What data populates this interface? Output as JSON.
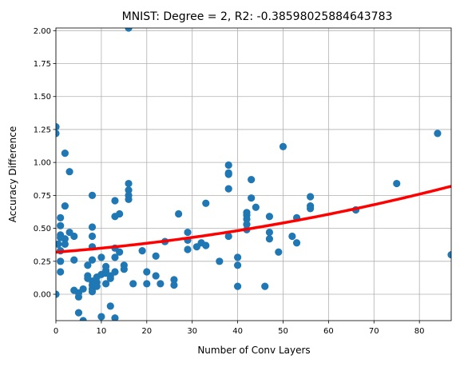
{
  "chart_data": {
    "type": "scatter",
    "title": "MNIST: Degree = 2, R2: -0.38598025884643783",
    "xlabel": "Number of Conv Layers",
    "ylabel": "Accuracy Difference",
    "xlim": [
      0,
      87
    ],
    "ylim": [
      -0.2,
      2.02
    ],
    "x_ticks": [
      0,
      10,
      20,
      30,
      40,
      50,
      60,
      70,
      80
    ],
    "y_ticks": [
      0.0,
      0.25,
      0.5,
      0.75,
      1.0,
      1.25,
      1.5,
      1.75,
      2.0
    ],
    "x_tick_labels": [
      "0",
      "10",
      "20",
      "30",
      "40",
      "50",
      "60",
      "70",
      "80"
    ],
    "y_tick_labels": [
      "0.00",
      "0.25",
      "0.50",
      "0.75",
      "1.00",
      "1.25",
      "1.50",
      "1.75",
      "2.00"
    ],
    "grid": true,
    "colors": {
      "points": "#1f77b4",
      "fit": "#ff0000",
      "grid": "#b0b0b0"
    },
    "points": [
      {
        "x": 0,
        "y": 1.27
      },
      {
        "x": 0,
        "y": 1.22
      },
      {
        "x": 0,
        "y": 0.0
      },
      {
        "x": 0.5,
        "y": 0.38
      },
      {
        "x": 1,
        "y": 0.58
      },
      {
        "x": 1,
        "y": 0.52
      },
      {
        "x": 1,
        "y": 0.45
      },
      {
        "x": 1,
        "y": 0.43
      },
      {
        "x": 1,
        "y": 0.33
      },
      {
        "x": 1,
        "y": 0.25
      },
      {
        "x": 1,
        "y": 0.17
      },
      {
        "x": 2,
        "y": 1.07
      },
      {
        "x": 2,
        "y": 0.67
      },
      {
        "x": 2,
        "y": 0.42
      },
      {
        "x": 2,
        "y": 0.38
      },
      {
        "x": 3,
        "y": 0.93
      },
      {
        "x": 3,
        "y": 0.47
      },
      {
        "x": 4,
        "y": 0.44
      },
      {
        "x": 4,
        "y": 0.26
      },
      {
        "x": 4,
        "y": 0.03
      },
      {
        "x": 5,
        "y": 0.01
      },
      {
        "x": 5,
        "y": -0.02
      },
      {
        "x": 5,
        "y": -0.14
      },
      {
        "x": 6,
        "y": 0.04
      },
      {
        "x": 6,
        "y": -0.2
      },
      {
        "x": 7,
        "y": 0.22
      },
      {
        "x": 7,
        "y": 0.14
      },
      {
        "x": 7,
        "y": 0.12
      },
      {
        "x": 8,
        "y": 0.75
      },
      {
        "x": 8,
        "y": 0.51
      },
      {
        "x": 8,
        "y": 0.44
      },
      {
        "x": 8,
        "y": 0.36
      },
      {
        "x": 8,
        "y": 0.26
      },
      {
        "x": 8,
        "y": 0.1
      },
      {
        "x": 8,
        "y": 0.07
      },
      {
        "x": 8,
        "y": 0.04
      },
      {
        "x": 8,
        "y": 0.02
      },
      {
        "x": 9,
        "y": 0.13
      },
      {
        "x": 9,
        "y": 0.09
      },
      {
        "x": 9,
        "y": 0.06
      },
      {
        "x": 10,
        "y": 0.28
      },
      {
        "x": 10,
        "y": 0.15
      },
      {
        "x": 10,
        "y": -0.17
      },
      {
        "x": 11,
        "y": 0.21
      },
      {
        "x": 11,
        "y": 0.18
      },
      {
        "x": 11,
        "y": 0.16
      },
      {
        "x": 11,
        "y": 0.08
      },
      {
        "x": 12,
        "y": 0.14
      },
      {
        "x": 12,
        "y": 0.12
      },
      {
        "x": 12,
        "y": -0.09
      },
      {
        "x": 13,
        "y": 0.71
      },
      {
        "x": 13,
        "y": 0.59
      },
      {
        "x": 13,
        "y": 0.35
      },
      {
        "x": 13,
        "y": 0.28
      },
      {
        "x": 13,
        "y": 0.17
      },
      {
        "x": 13,
        "y": -0.18
      },
      {
        "x": 14,
        "y": 0.61
      },
      {
        "x": 14,
        "y": 0.32
      },
      {
        "x": 15,
        "y": 0.22
      },
      {
        "x": 15,
        "y": 0.19
      },
      {
        "x": 16,
        "y": 0.84
      },
      {
        "x": 16,
        "y": 0.79
      },
      {
        "x": 16,
        "y": 0.75
      },
      {
        "x": 16,
        "y": 0.72
      },
      {
        "x": 16,
        "y": 2.02
      },
      {
        "x": 17,
        "y": 0.08
      },
      {
        "x": 19,
        "y": 0.33
      },
      {
        "x": 20,
        "y": 0.17
      },
      {
        "x": 20,
        "y": 0.08
      },
      {
        "x": 22,
        "y": 0.29
      },
      {
        "x": 22,
        "y": 0.14
      },
      {
        "x": 23,
        "y": 0.08
      },
      {
        "x": 24,
        "y": 0.4
      },
      {
        "x": 26,
        "y": 0.11
      },
      {
        "x": 26,
        "y": 0.07
      },
      {
        "x": 27,
        "y": 0.61
      },
      {
        "x": 29,
        "y": 0.47
      },
      {
        "x": 29,
        "y": 0.41
      },
      {
        "x": 29,
        "y": 0.34
      },
      {
        "x": 31,
        "y": 0.36
      },
      {
        "x": 32,
        "y": 0.39
      },
      {
        "x": 33,
        "y": 0.69
      },
      {
        "x": 33,
        "y": 0.37
      },
      {
        "x": 36,
        "y": 0.25
      },
      {
        "x": 38,
        "y": 0.98
      },
      {
        "x": 38,
        "y": 0.92
      },
      {
        "x": 38,
        "y": 0.91
      },
      {
        "x": 38,
        "y": 0.8
      },
      {
        "x": 38,
        "y": 0.44
      },
      {
        "x": 40,
        "y": 0.28
      },
      {
        "x": 40,
        "y": 0.22
      },
      {
        "x": 40,
        "y": 0.06
      },
      {
        "x": 42,
        "y": 0.62
      },
      {
        "x": 42,
        "y": 0.6
      },
      {
        "x": 42,
        "y": 0.57
      },
      {
        "x": 42,
        "y": 0.53
      },
      {
        "x": 42,
        "y": 0.49
      },
      {
        "x": 43,
        "y": 0.87
      },
      {
        "x": 43,
        "y": 0.73
      },
      {
        "x": 44,
        "y": 0.66
      },
      {
        "x": 46,
        "y": 0.06
      },
      {
        "x": 47,
        "y": 0.59
      },
      {
        "x": 47,
        "y": 0.47
      },
      {
        "x": 47,
        "y": 0.42
      },
      {
        "x": 49,
        "y": 0.32
      },
      {
        "x": 50,
        "y": 1.12
      },
      {
        "x": 52,
        "y": 0.44
      },
      {
        "x": 53,
        "y": 0.58
      },
      {
        "x": 53,
        "y": 0.39
      },
      {
        "x": 56,
        "y": 0.74
      },
      {
        "x": 56,
        "y": 0.67
      },
      {
        "x": 56,
        "y": 0.65
      },
      {
        "x": 66,
        "y": 0.64
      },
      {
        "x": 75,
        "y": 0.84
      },
      {
        "x": 84,
        "y": 1.22
      },
      {
        "x": 87,
        "y": 0.3
      }
    ],
    "fit": {
      "degree": 2,
      "coefficients": [
        0.3195,
        0.00265,
        3.56e-05
      ]
    }
  }
}
